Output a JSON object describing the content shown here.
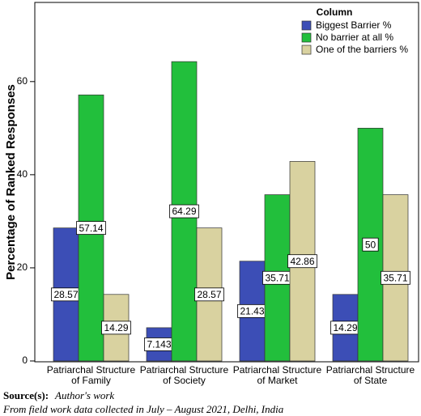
{
  "chart_data": {
    "type": "bar",
    "y_label": "Percentage of Ranked Responses",
    "legend_title": "Column",
    "categories": [
      [
        "Patriarchal Structure",
        "of Family"
      ],
      [
        "Patriarchal Structure",
        "of Society"
      ],
      [
        "Patriarchal Structure",
        "of Market"
      ],
      [
        "Patriarchal Structure",
        "of State"
      ]
    ],
    "series": [
      {
        "name": "Biggest Barrier %",
        "color": "#3c4eb6",
        "values": [
          28.57,
          7.143,
          21.43,
          14.29
        ]
      },
      {
        "name": "No barrier at all %",
        "color": "#22bf3c",
        "values": [
          57.14,
          64.29,
          35.71,
          50
        ]
      },
      {
        "name": "One of the barriers %",
        "color": "#d9d2a0",
        "values": [
          14.29,
          28.57,
          42.86,
          35.71
        ]
      }
    ],
    "ylim": [
      0,
      77
    ],
    "yticks": [
      0,
      20,
      40,
      60
    ],
    "grid": false,
    "source_label": "Source(s):",
    "source_text": "Author's work",
    "note": "From field work data collected in July – August 2021, Delhi, India"
  }
}
